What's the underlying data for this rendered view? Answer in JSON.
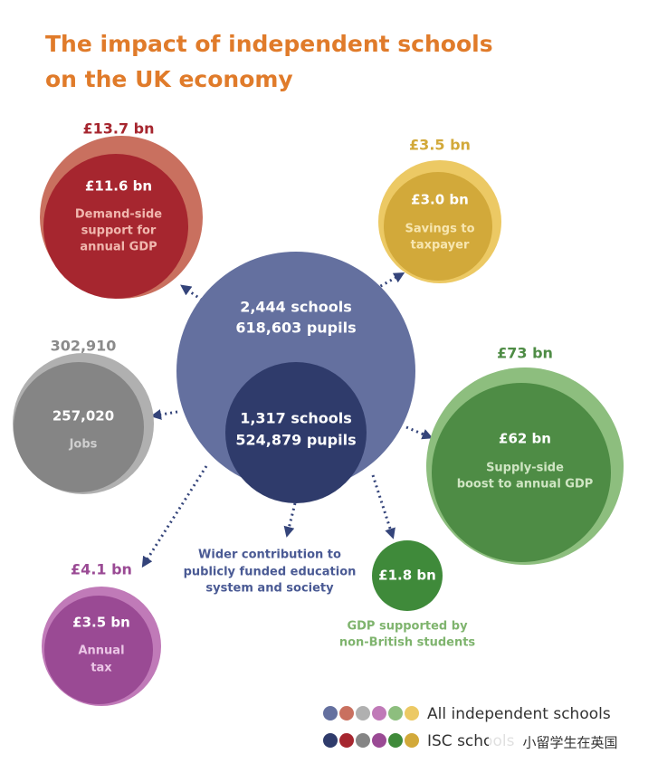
{
  "title": [
    "The impact of independent schools",
    "on the UK economy"
  ],
  "center": {
    "outer": [
      "2,444 schools",
      "618,603 pupils"
    ],
    "inner": [
      "1,317 schools",
      "524,879 pupils"
    ]
  },
  "nodes": [
    {
      "outer_value": "£13.7 bn",
      "inner_value": "£11.6 bn",
      "label": [
        "Demand-side",
        "support for",
        "annual GDP"
      ]
    },
    {
      "outer_value": "£3.5 bn",
      "inner_value": "£3.0 bn",
      "label": [
        "Savings to",
        "taxpayer"
      ]
    },
    {
      "outer_value": "302,910",
      "inner_value": "257,020",
      "label": [
        "Jobs"
      ]
    },
    {
      "outer_value": "£73 bn",
      "inner_value": "£62 bn",
      "label": [
        "Supply-side",
        "boost to annual GDP"
      ]
    },
    {
      "outer_value": "£4.1 bn",
      "inner_value": "£3.5 bn",
      "label": [
        "Annual",
        "tax"
      ]
    },
    {
      "inner_value": "£1.8 bn",
      "label": [
        "GDP supported by",
        "non-British students"
      ]
    },
    {
      "label": [
        "Wider contribution to",
        "publicly funded education",
        "system and society"
      ]
    }
  ],
  "legend": [
    "All independent schools",
    "ISC schools"
  ],
  "watermark": "小留学生在英国"
}
